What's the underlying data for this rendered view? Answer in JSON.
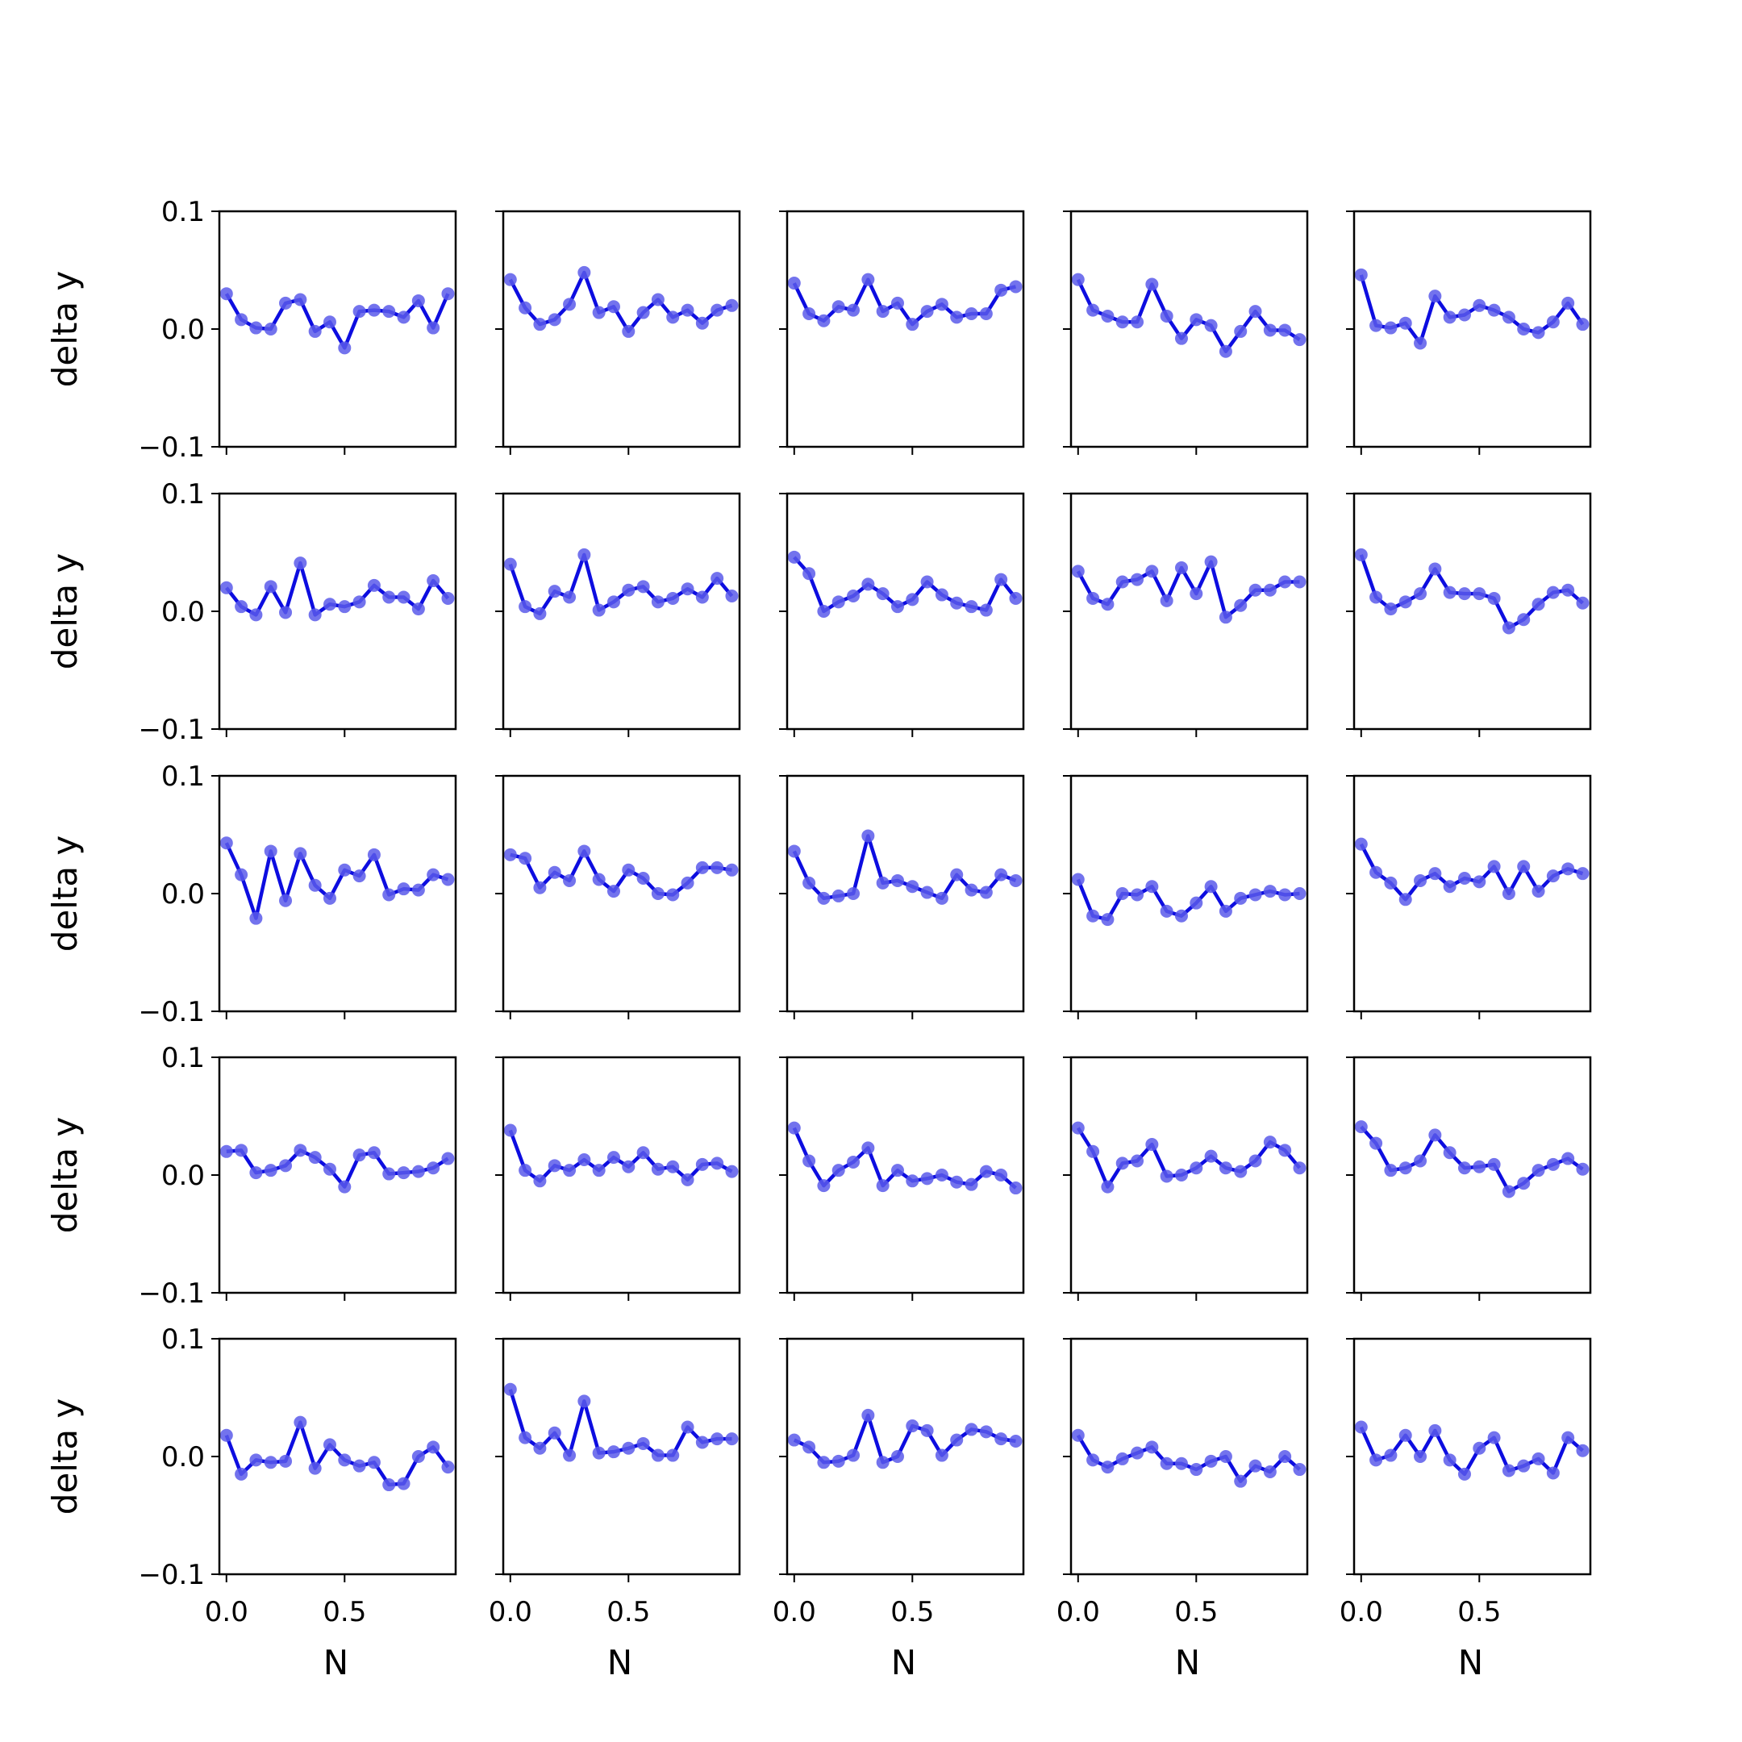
{
  "chart_data": {
    "type": "line",
    "layout": {
      "rows": 5,
      "cols": 5
    },
    "xlabel": "N",
    "ylabel": "delta y",
    "x": [
      0.0,
      0.0625,
      0.125,
      0.1875,
      0.25,
      0.3125,
      0.375,
      0.4375,
      0.5,
      0.5625,
      0.625,
      0.6875,
      0.75,
      0.8125,
      0.875,
      0.9375
    ],
    "xlim": [
      -0.03,
      0.97
    ],
    "ylim": [
      -0.1,
      0.1
    ],
    "x_ticks": [
      0.0,
      0.5
    ],
    "x_tick_labels": [
      "0.0",
      "0.5"
    ],
    "y_ticks": [
      -0.1,
      0.0,
      0.1
    ],
    "y_tick_labels": [
      "−0.1",
      "0.0",
      "0.1"
    ],
    "line_color": "#0d0de0",
    "marker_color": "#5b5bea",
    "grid": false,
    "legend": "none",
    "panels": [
      {
        "values": [
          0.03,
          0.008,
          0.001,
          0.0,
          0.022,
          0.025,
          -0.002,
          0.006,
          -0.016,
          0.015,
          0.016,
          0.015,
          0.01,
          0.024,
          0.001,
          0.03
        ]
      },
      {
        "values": [
          0.042,
          0.018,
          0.004,
          0.008,
          0.021,
          0.048,
          0.014,
          0.019,
          -0.002,
          0.014,
          0.025,
          0.01,
          0.016,
          0.005,
          0.016,
          0.02
        ]
      },
      {
        "values": [
          0.039,
          0.013,
          0.007,
          0.019,
          0.016,
          0.042,
          0.015,
          0.022,
          0.004,
          0.015,
          0.021,
          0.01,
          0.013,
          0.013,
          0.033,
          0.036
        ]
      },
      {
        "values": [
          0.042,
          0.016,
          0.011,
          0.006,
          0.006,
          0.038,
          0.011,
          -0.008,
          0.008,
          0.003,
          -0.019,
          -0.002,
          0.015,
          -0.001,
          -0.001,
          -0.009
        ]
      },
      {
        "values": [
          0.046,
          0.003,
          0.001,
          0.005,
          -0.012,
          0.028,
          0.01,
          0.012,
          0.02,
          0.016,
          0.01,
          0.0,
          -0.003,
          0.006,
          0.022,
          0.004
        ]
      },
      {
        "values": [
          0.02,
          0.004,
          -0.003,
          0.021,
          -0.001,
          0.041,
          -0.003,
          0.006,
          0.004,
          0.008,
          0.022,
          0.012,
          0.012,
          0.002,
          0.026,
          0.011
        ]
      },
      {
        "values": [
          0.04,
          0.004,
          -0.002,
          0.017,
          0.012,
          0.048,
          0.001,
          0.008,
          0.018,
          0.021,
          0.008,
          0.011,
          0.019,
          0.012,
          0.028,
          0.013
        ]
      },
      {
        "values": [
          0.046,
          0.032,
          0.0,
          0.008,
          0.013,
          0.023,
          0.015,
          0.004,
          0.01,
          0.025,
          0.014,
          0.007,
          0.004,
          0.001,
          0.027,
          0.011
        ]
      },
      {
        "values": [
          0.034,
          0.011,
          0.006,
          0.025,
          0.027,
          0.034,
          0.009,
          0.037,
          0.015,
          0.042,
          -0.005,
          0.005,
          0.018,
          0.018,
          0.025,
          0.025
        ]
      },
      {
        "values": [
          0.048,
          0.012,
          0.002,
          0.008,
          0.015,
          0.036,
          0.016,
          0.015,
          0.015,
          0.011,
          -0.014,
          -0.007,
          0.006,
          0.016,
          0.018,
          0.007
        ]
      },
      {
        "values": [
          0.043,
          0.016,
          -0.021,
          0.036,
          -0.006,
          0.034,
          0.007,
          -0.004,
          0.02,
          0.015,
          0.033,
          -0.001,
          0.004,
          0.003,
          0.016,
          0.012
        ]
      },
      {
        "values": [
          0.033,
          0.03,
          0.005,
          0.018,
          0.011,
          0.036,
          0.012,
          0.002,
          0.02,
          0.013,
          0.0,
          -0.001,
          0.009,
          0.022,
          0.022,
          0.02
        ]
      },
      {
        "values": [
          0.036,
          0.009,
          -0.004,
          -0.002,
          0.0,
          0.049,
          0.009,
          0.011,
          0.006,
          0.001,
          -0.004,
          0.016,
          0.003,
          0.001,
          0.016,
          0.011
        ]
      },
      {
        "values": [
          0.012,
          -0.019,
          -0.022,
          0.0,
          -0.001,
          0.006,
          -0.015,
          -0.019,
          -0.008,
          0.006,
          -0.015,
          -0.004,
          -0.001,
          0.002,
          -0.001,
          0.0
        ]
      },
      {
        "values": [
          0.042,
          0.018,
          0.009,
          -0.005,
          0.011,
          0.017,
          0.006,
          0.013,
          0.01,
          0.023,
          0.0,
          0.023,
          0.002,
          0.015,
          0.021,
          0.017
        ]
      },
      {
        "values": [
          0.02,
          0.021,
          0.002,
          0.004,
          0.008,
          0.021,
          0.015,
          0.005,
          -0.01,
          0.017,
          0.019,
          0.001,
          0.002,
          0.003,
          0.006,
          0.014
        ]
      },
      {
        "values": [
          0.038,
          0.004,
          -0.005,
          0.008,
          0.004,
          0.013,
          0.004,
          0.015,
          0.007,
          0.019,
          0.005,
          0.007,
          -0.004,
          0.009,
          0.01,
          0.003
        ]
      },
      {
        "values": [
          0.04,
          0.012,
          -0.009,
          0.004,
          0.011,
          0.023,
          -0.009,
          0.004,
          -0.005,
          -0.003,
          0.0,
          -0.006,
          -0.008,
          0.003,
          0.0,
          -0.011
        ]
      },
      {
        "values": [
          0.04,
          0.02,
          -0.01,
          0.01,
          0.012,
          0.026,
          -0.001,
          0.0,
          0.006,
          0.016,
          0.006,
          0.003,
          0.012,
          0.028,
          0.021,
          0.006
        ]
      },
      {
        "values": [
          0.041,
          0.027,
          0.004,
          0.006,
          0.012,
          0.034,
          0.019,
          0.006,
          0.007,
          0.009,
          -0.014,
          -0.007,
          0.004,
          0.009,
          0.014,
          0.005
        ]
      },
      {
        "values": [
          0.018,
          -0.015,
          -0.003,
          -0.005,
          -0.004,
          0.029,
          -0.01,
          0.01,
          -0.003,
          -0.008,
          -0.005,
          -0.024,
          -0.023,
          0.0,
          0.008,
          -0.009
        ]
      },
      {
        "values": [
          0.057,
          0.016,
          0.007,
          0.02,
          0.001,
          0.047,
          0.003,
          0.004,
          0.007,
          0.011,
          0.001,
          0.001,
          0.025,
          0.012,
          0.015,
          0.015
        ]
      },
      {
        "values": [
          0.014,
          0.008,
          -0.005,
          -0.004,
          0.001,
          0.035,
          -0.005,
          0.0,
          0.026,
          0.022,
          0.001,
          0.014,
          0.023,
          0.021,
          0.015,
          0.013
        ]
      },
      {
        "values": [
          0.018,
          -0.003,
          -0.009,
          -0.002,
          0.003,
          0.008,
          -0.006,
          -0.006,
          -0.011,
          -0.004,
          0.0,
          -0.021,
          -0.008,
          -0.013,
          0.0,
          -0.011
        ]
      },
      {
        "values": [
          0.025,
          -0.003,
          0.001,
          0.018,
          0.0,
          0.022,
          -0.003,
          -0.015,
          0.007,
          0.016,
          -0.012,
          -0.008,
          -0.002,
          -0.014,
          0.016,
          0.005
        ]
      }
    ]
  }
}
